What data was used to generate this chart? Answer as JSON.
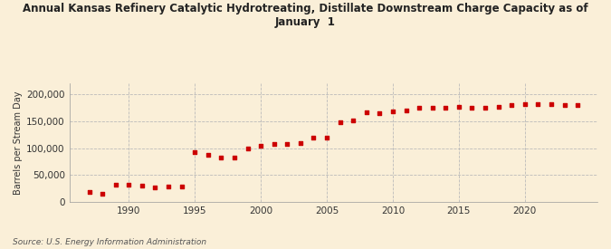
{
  "title": "Annual Kansas Refinery Catalytic Hydrotreating, Distillate Downstream Charge Capacity as of\nJanuary  1",
  "ylabel": "Barrels per Stream Day",
  "source": "Source: U.S. Energy Information Administration",
  "background_color": "#faefd8",
  "plot_bg_color": "#faefd8",
  "marker_color": "#cc0000",
  "years": [
    1987,
    1988,
    1989,
    1990,
    1991,
    1992,
    1993,
    1994,
    1995,
    1996,
    1997,
    1998,
    1999,
    2000,
    2001,
    2002,
    2003,
    2004,
    2005,
    2006,
    2007,
    2008,
    2009,
    2010,
    2011,
    2012,
    2013,
    2014,
    2015,
    2016,
    2017,
    2018,
    2019,
    2020,
    2021,
    2022,
    2023,
    2024
  ],
  "values": [
    18000,
    16000,
    32000,
    32000,
    30000,
    27000,
    28000,
    28000,
    93000,
    87000,
    83000,
    83000,
    100000,
    105000,
    107000,
    107000,
    110000,
    119000,
    120000,
    148000,
    152000,
    166000,
    165000,
    168000,
    170000,
    174000,
    175000,
    175000,
    176000,
    174000,
    175000,
    176000,
    180000,
    182000,
    182000,
    182000,
    180000,
    180000
  ],
  "ylim": [
    0,
    220000
  ],
  "yticks": [
    0,
    50000,
    100000,
    150000,
    200000
  ],
  "xlim": [
    1985.5,
    2025.5
  ],
  "xticks": [
    1990,
    1995,
    2000,
    2005,
    2010,
    2015,
    2020
  ]
}
